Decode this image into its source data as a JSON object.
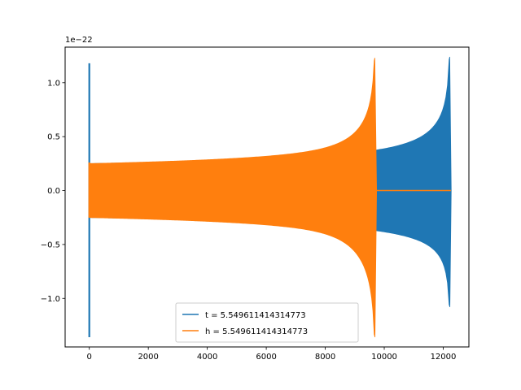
{
  "chart_data": {
    "type": "line",
    "title": "",
    "xlabel": "",
    "ylabel": "",
    "offset_label": "1e−22",
    "xlim": [
      -820,
      12870
    ],
    "ylim": [
      -1.45,
      1.33
    ],
    "x_ticks": [
      0,
      2000,
      4000,
      6000,
      8000,
      10000,
      12000
    ],
    "x_tick_labels": [
      "0",
      "2000",
      "4000",
      "6000",
      "8000",
      "10000",
      "12000"
    ],
    "y_ticks": [
      -1.0,
      -0.5,
      0.0,
      0.5,
      1.0
    ],
    "y_tick_labels": [
      "−1.0",
      "−0.5",
      "0.0",
      "0.5",
      "1.0"
    ],
    "grid": false,
    "legend_position": "lower-center",
    "series": [
      {
        "name": "t = 5.549611414314773",
        "color": "#1f77b4",
        "start_spike": {
          "x": 0,
          "max": 1.18,
          "min": -1.36
        },
        "x_start": 0,
        "x_merge": 12200,
        "x_end": 12270,
        "amp_start": 0.25,
        "amp_merge_top": 1.24,
        "amp_merge_bottom": -1.08,
        "tail_value": 0.0,
        "tail_end": 12260
      },
      {
        "name": "h = 5.549611414314773",
        "color": "#ff7f0e",
        "start_spike": {
          "x": 0,
          "max": 0.26,
          "min": -0.25
        },
        "x_start": 0,
        "x_merge": 9660,
        "x_end": 9740,
        "amp_start": 0.25,
        "amp_merge_top": 1.23,
        "amp_merge_bottom": -1.36,
        "tail_value": 0.0,
        "tail_end": 12260
      }
    ]
  }
}
